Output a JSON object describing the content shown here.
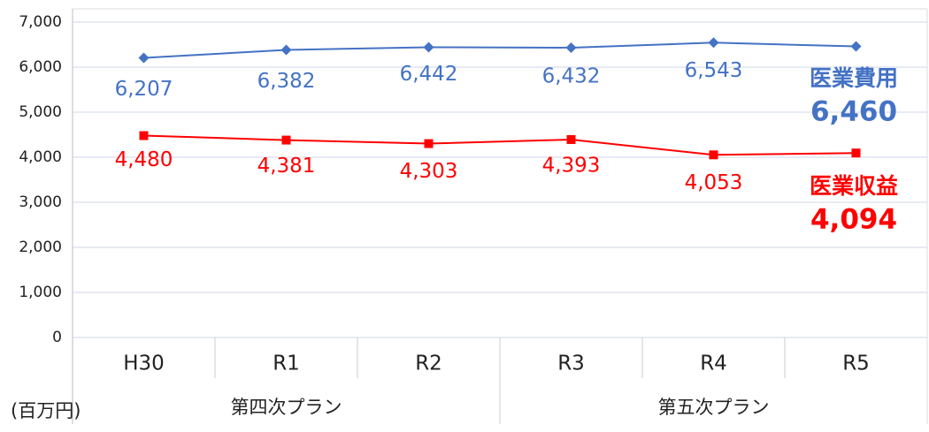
{
  "chart_data": {
    "type": "line",
    "unit_label": "(百万円)",
    "categories": [
      "H30",
      "R1",
      "R2",
      "R3",
      "R4",
      "R5"
    ],
    "groups": [
      {
        "label": "第四次プラン",
        "start": 0,
        "end": 2
      },
      {
        "label": "第五次プラン",
        "start": 3,
        "end": 5
      }
    ],
    "series": [
      {
        "name": "医業費用",
        "color": "#4472c4",
        "marker": "diamond",
        "values": [
          6207,
          6382,
          6442,
          6432,
          6543,
          6460
        ],
        "value_labels": [
          "6,207",
          "6,382",
          "6,442",
          "6,432",
          "6,543",
          "6,460"
        ]
      },
      {
        "name": "医業収益",
        "color": "#ff0000",
        "marker": "square",
        "values": [
          4480,
          4381,
          4303,
          4393,
          4053,
          4094
        ],
        "value_labels": [
          "4,480",
          "4,381",
          "4,303",
          "4,393",
          "4,053",
          "4,094"
        ]
      }
    ],
    "ylim": [
      0,
      7000
    ],
    "yticks": [
      0,
      {
        "value": 1000,
        "label": "1,000"
      },
      {
        "value": 2000,
        "label": "2,000"
      },
      {
        "value": 3000,
        "label": "3,000"
      },
      {
        "value": 4000,
        "label": "4,000"
      },
      {
        "value": 5000,
        "label": "5,000"
      },
      {
        "value": 6000,
        "label": "6,000"
      },
      {
        "value": 7000,
        "label": "7,000"
      }
    ],
    "grid": true
  }
}
